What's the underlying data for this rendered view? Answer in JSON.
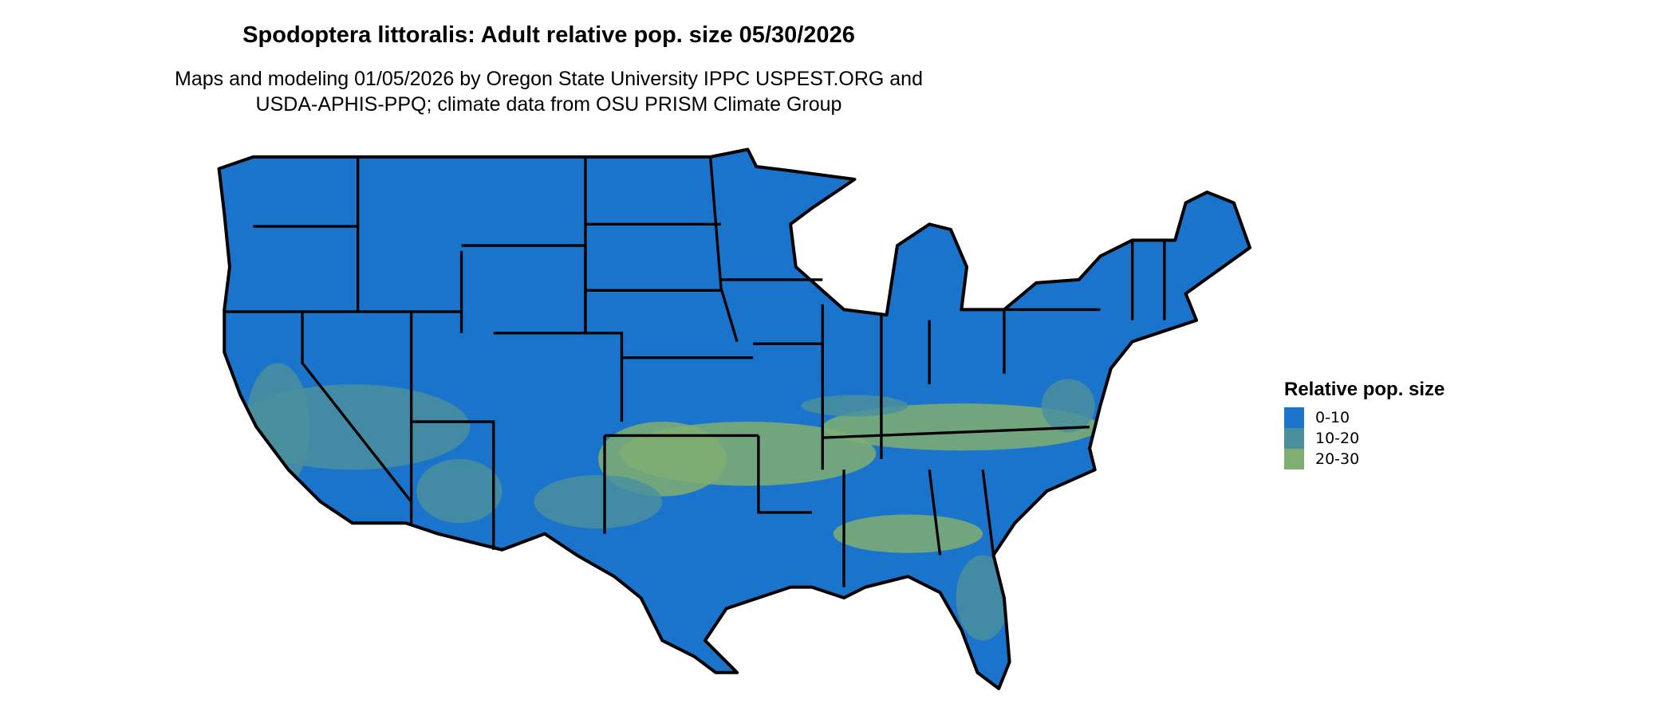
{
  "title": "Spodoptera littoralis: Adult relative pop. size 05/30/2026",
  "subtitle_line1": "Maps and modeling 01/05/2026 by Oregon State University IPPC USPEST.ORG and",
  "subtitle_line2": "USDA-APHIS-PPQ; climate data from OSU PRISM Climate Group",
  "legend": {
    "title": "Relative pop. size",
    "items": [
      {
        "label": "0-10",
        "color": "#1b74cc"
      },
      {
        "label": "10-20",
        "color": "#4a8f9c"
      },
      {
        "label": "20-30",
        "color": "#7fae70"
      }
    ]
  },
  "map": {
    "region": "Contiguous United States",
    "boundary_color": "#000000"
  }
}
